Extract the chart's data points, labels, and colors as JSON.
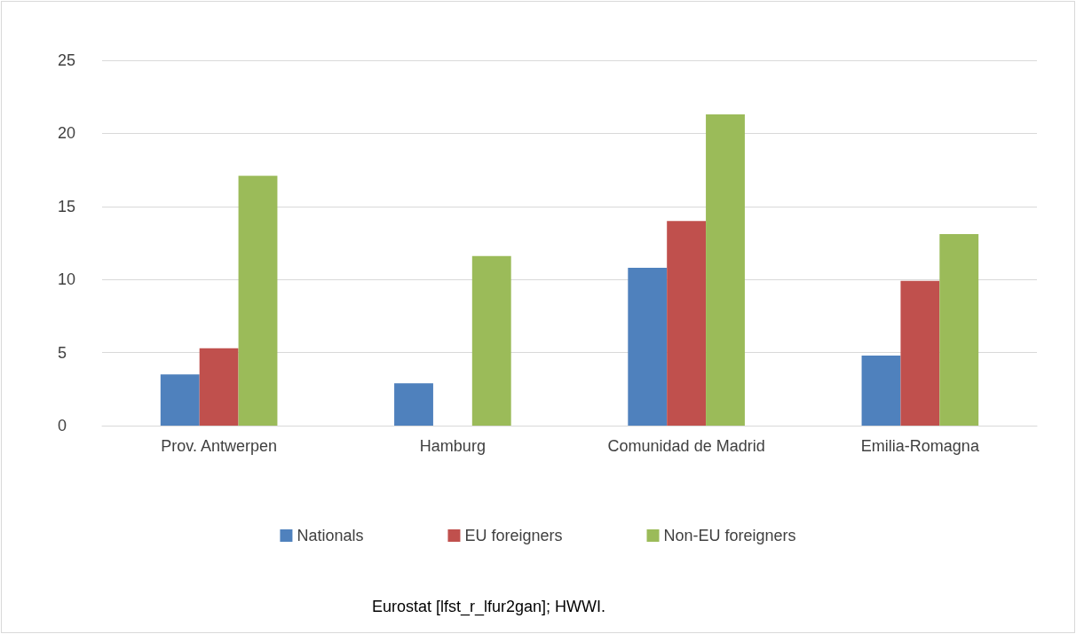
{
  "chart_data": {
    "type": "bar",
    "categories": [
      "Prov. Antwerpen",
      "Hamburg",
      "Comunidad de Madrid",
      "Emilia-Romagna"
    ],
    "series": [
      {
        "name": "Nationals",
        "color": "#4f81bd",
        "values": [
          3.5,
          2.9,
          10.8,
          4.8
        ]
      },
      {
        "name": "EU foreigners",
        "color": "#c0504d",
        "values": [
          5.3,
          null,
          14.0,
          9.9
        ]
      },
      {
        "name": "Non-EU foreigners",
        "color": "#9bbb59",
        "values": [
          17.1,
          11.6,
          21.3,
          13.1
        ]
      }
    ],
    "ylim": [
      0,
      25
    ],
    "yticks": [
      0,
      5,
      10,
      15,
      20,
      25
    ],
    "grid": "y",
    "legend": "bottom",
    "annotations": [
      "Eurostat [lfst_r_lfur2gan]; HWWI."
    ]
  }
}
